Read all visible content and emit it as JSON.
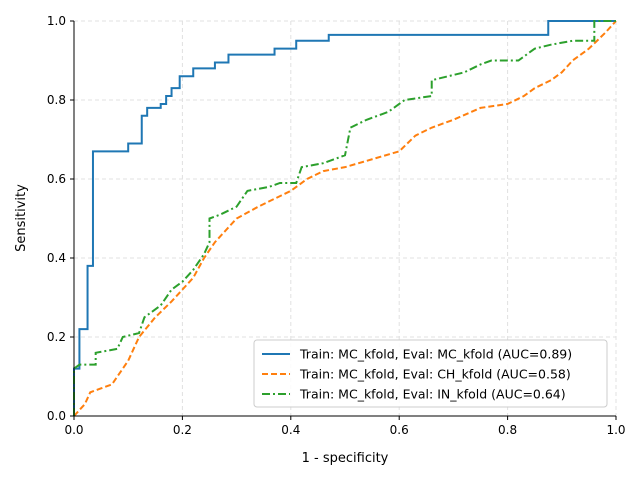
{
  "chart_data": {
    "type": "line",
    "title": "",
    "xlabel": "1 - specificity",
    "ylabel": "Sensitivity",
    "xlim": [
      0,
      1
    ],
    "ylim": [
      0,
      1
    ],
    "xticks": [
      "0.0",
      "0.2",
      "0.4",
      "0.6",
      "0.8",
      "1.0"
    ],
    "yticks": [
      "0.0",
      "0.2",
      "0.4",
      "0.6",
      "0.8",
      "1.0"
    ],
    "grid": true,
    "legend_position": "lower-right",
    "series": [
      {
        "name": "Train: MC_kfold, Eval: MC_kfold (AUC=0.89)",
        "color": "#1f77b4",
        "style": "solid",
        "x": [
          0,
          0,
          0.01,
          0.01,
          0.025,
          0.025,
          0.035,
          0.035,
          0.1,
          0.1,
          0.125,
          0.125,
          0.135,
          0.135,
          0.16,
          0.16,
          0.17,
          0.17,
          0.18,
          0.18,
          0.195,
          0.195,
          0.22,
          0.22,
          0.26,
          0.26,
          0.285,
          0.285,
          0.37,
          0.37,
          0.41,
          0.41,
          0.47,
          0.47,
          0.875,
          0.875,
          1
        ],
        "y": [
          0,
          0.12,
          0.12,
          0.22,
          0.22,
          0.38,
          0.38,
          0.67,
          0.67,
          0.69,
          0.69,
          0.76,
          0.76,
          0.78,
          0.78,
          0.79,
          0.79,
          0.81,
          0.81,
          0.83,
          0.83,
          0.86,
          0.86,
          0.88,
          0.88,
          0.895,
          0.895,
          0.915,
          0.915,
          0.93,
          0.93,
          0.95,
          0.95,
          0.965,
          0.965,
          1,
          1
        ]
      },
      {
        "name": "Train: MC_kfold, Eval: CH_kfold (AUC=0.58)",
        "color": "#ff7f0e",
        "style": "dashed",
        "x": [
          0,
          0.02,
          0.03,
          0.05,
          0.07,
          0.08,
          0.09,
          0.1,
          0.11,
          0.12,
          0.15,
          0.18,
          0.2,
          0.22,
          0.24,
          0.26,
          0.3,
          0.34,
          0.37,
          0.4,
          0.43,
          0.46,
          0.5,
          0.55,
          0.6,
          0.63,
          0.66,
          0.7,
          0.75,
          0.8,
          0.83,
          0.85,
          0.88,
          0.9,
          0.92,
          0.95,
          0.98,
          1
        ],
        "y": [
          0,
          0.03,
          0.06,
          0.07,
          0.08,
          0.1,
          0.12,
          0.14,
          0.17,
          0.2,
          0.25,
          0.29,
          0.32,
          0.35,
          0.4,
          0.44,
          0.5,
          0.53,
          0.55,
          0.57,
          0.6,
          0.62,
          0.63,
          0.65,
          0.67,
          0.71,
          0.73,
          0.75,
          0.78,
          0.79,
          0.81,
          0.83,
          0.85,
          0.87,
          0.9,
          0.93,
          0.97,
          1
        ]
      },
      {
        "name": "Train: MC_kfold, Eval: IN_kfold (AUC=0.64)",
        "color": "#2ca02c",
        "style": "dashdot",
        "x": [
          0,
          0,
          0.01,
          0.04,
          0.04,
          0.08,
          0.09,
          0.12,
          0.13,
          0.16,
          0.18,
          0.2,
          0.22,
          0.24,
          0.25,
          0.25,
          0.27,
          0.3,
          0.32,
          0.36,
          0.38,
          0.41,
          0.42,
          0.46,
          0.5,
          0.51,
          0.54,
          0.58,
          0.61,
          0.66,
          0.66,
          0.69,
          0.72,
          0.75,
          0.77,
          0.82,
          0.85,
          0.88,
          0.92,
          0.96,
          0.96,
          1
        ],
        "y": [
          0,
          0.12,
          0.13,
          0.13,
          0.16,
          0.17,
          0.2,
          0.21,
          0.25,
          0.28,
          0.32,
          0.34,
          0.37,
          0.41,
          0.44,
          0.5,
          0.51,
          0.53,
          0.57,
          0.58,
          0.59,
          0.59,
          0.63,
          0.64,
          0.66,
          0.73,
          0.75,
          0.77,
          0.8,
          0.81,
          0.85,
          0.86,
          0.87,
          0.89,
          0.9,
          0.9,
          0.93,
          0.94,
          0.95,
          0.95,
          1,
          1
        ]
      }
    ]
  }
}
